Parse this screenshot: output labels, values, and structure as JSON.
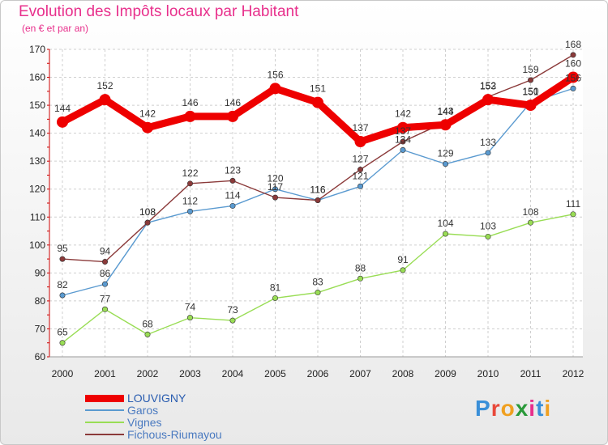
{
  "title": "Evolution des Impôts locaux par Habitant",
  "subtitle": "(en € et par an)",
  "logo": {
    "text": "Proxiti",
    "letter_colors": [
      "#3a8fd8",
      "#e8483a",
      "#f0a020",
      "#2a9a3a",
      "#e8308c",
      "#3a8fd8",
      "#f0a020"
    ]
  },
  "chart_data": {
    "type": "line",
    "x": [
      "2000",
      "2001",
      "2002",
      "2003",
      "2004",
      "2005",
      "2006",
      "2007",
      "2008",
      "2009",
      "2010",
      "2011",
      "2012"
    ],
    "ylim": [
      60,
      170
    ],
    "yticks": [
      60,
      70,
      80,
      90,
      100,
      110,
      120,
      130,
      140,
      150,
      160,
      170
    ],
    "grid": true,
    "legend_position": "bottom-left",
    "series": [
      {
        "name": "LOUVIGNY",
        "color": "#ee0000",
        "values": [
          144,
          152,
          142,
          146,
          146,
          156,
          151,
          137,
          142,
          143,
          152,
          150,
          160
        ]
      },
      {
        "name": "Garos",
        "color": "#5a9ad0",
        "values": [
          82,
          86,
          108,
          112,
          114,
          120,
          116,
          121,
          134,
          129,
          133,
          151,
          156
        ]
      },
      {
        "name": "Vignes",
        "color": "#99dd55",
        "values": [
          65,
          77,
          68,
          74,
          73,
          81,
          83,
          88,
          91,
          104,
          103,
          108,
          111
        ]
      },
      {
        "name": "Fichous-Riumayou",
        "color": "#8b3a3a",
        "values": [
          95,
          94,
          108,
          122,
          123,
          117,
          116,
          127,
          137,
          144,
          153,
          159,
          168
        ]
      }
    ]
  }
}
